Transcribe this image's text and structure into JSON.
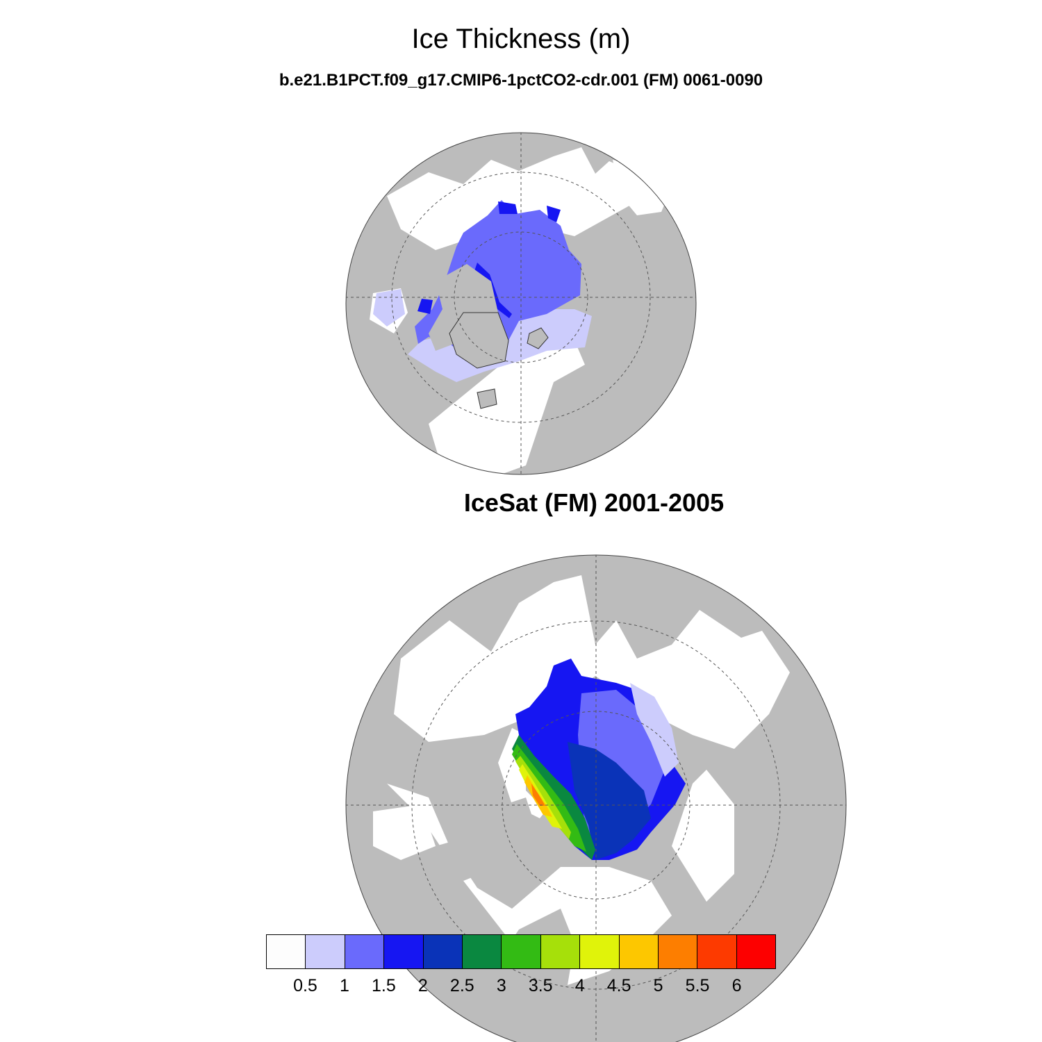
{
  "header": {
    "title": "Ice Thickness (m)",
    "subtitle": "b.e21.B1PCT.f09_g17.CMIP6-1pctCO2-cdr.001 (FM) 0061-0090"
  },
  "panels": {
    "model": {
      "projection": "polar stereographic (north)"
    },
    "observation": {
      "title": "IceSat (FM) 2001-2005",
      "projection": "polar stereographic (north)"
    }
  },
  "colors": {
    "land": "#bcbcbc",
    "ocean_no_data": "#ffffff",
    "coast": "#333333"
  },
  "colorbar": {
    "colors": [
      "#fdfdfd",
      "#ccccfc",
      "#6a6afc",
      "#1616f2",
      "#0a33b8",
      "#0a8840",
      "#33bb14",
      "#a6e00a",
      "#e0f30a",
      "#fdc700",
      "#fd7e00",
      "#fd3a00",
      "#fd0000"
    ],
    "labels": [
      "0.5",
      "1",
      "1.5",
      "2",
      "2.5",
      "3",
      "3.5",
      "4",
      "4.5",
      "5",
      "5.5",
      "6"
    ]
  }
}
